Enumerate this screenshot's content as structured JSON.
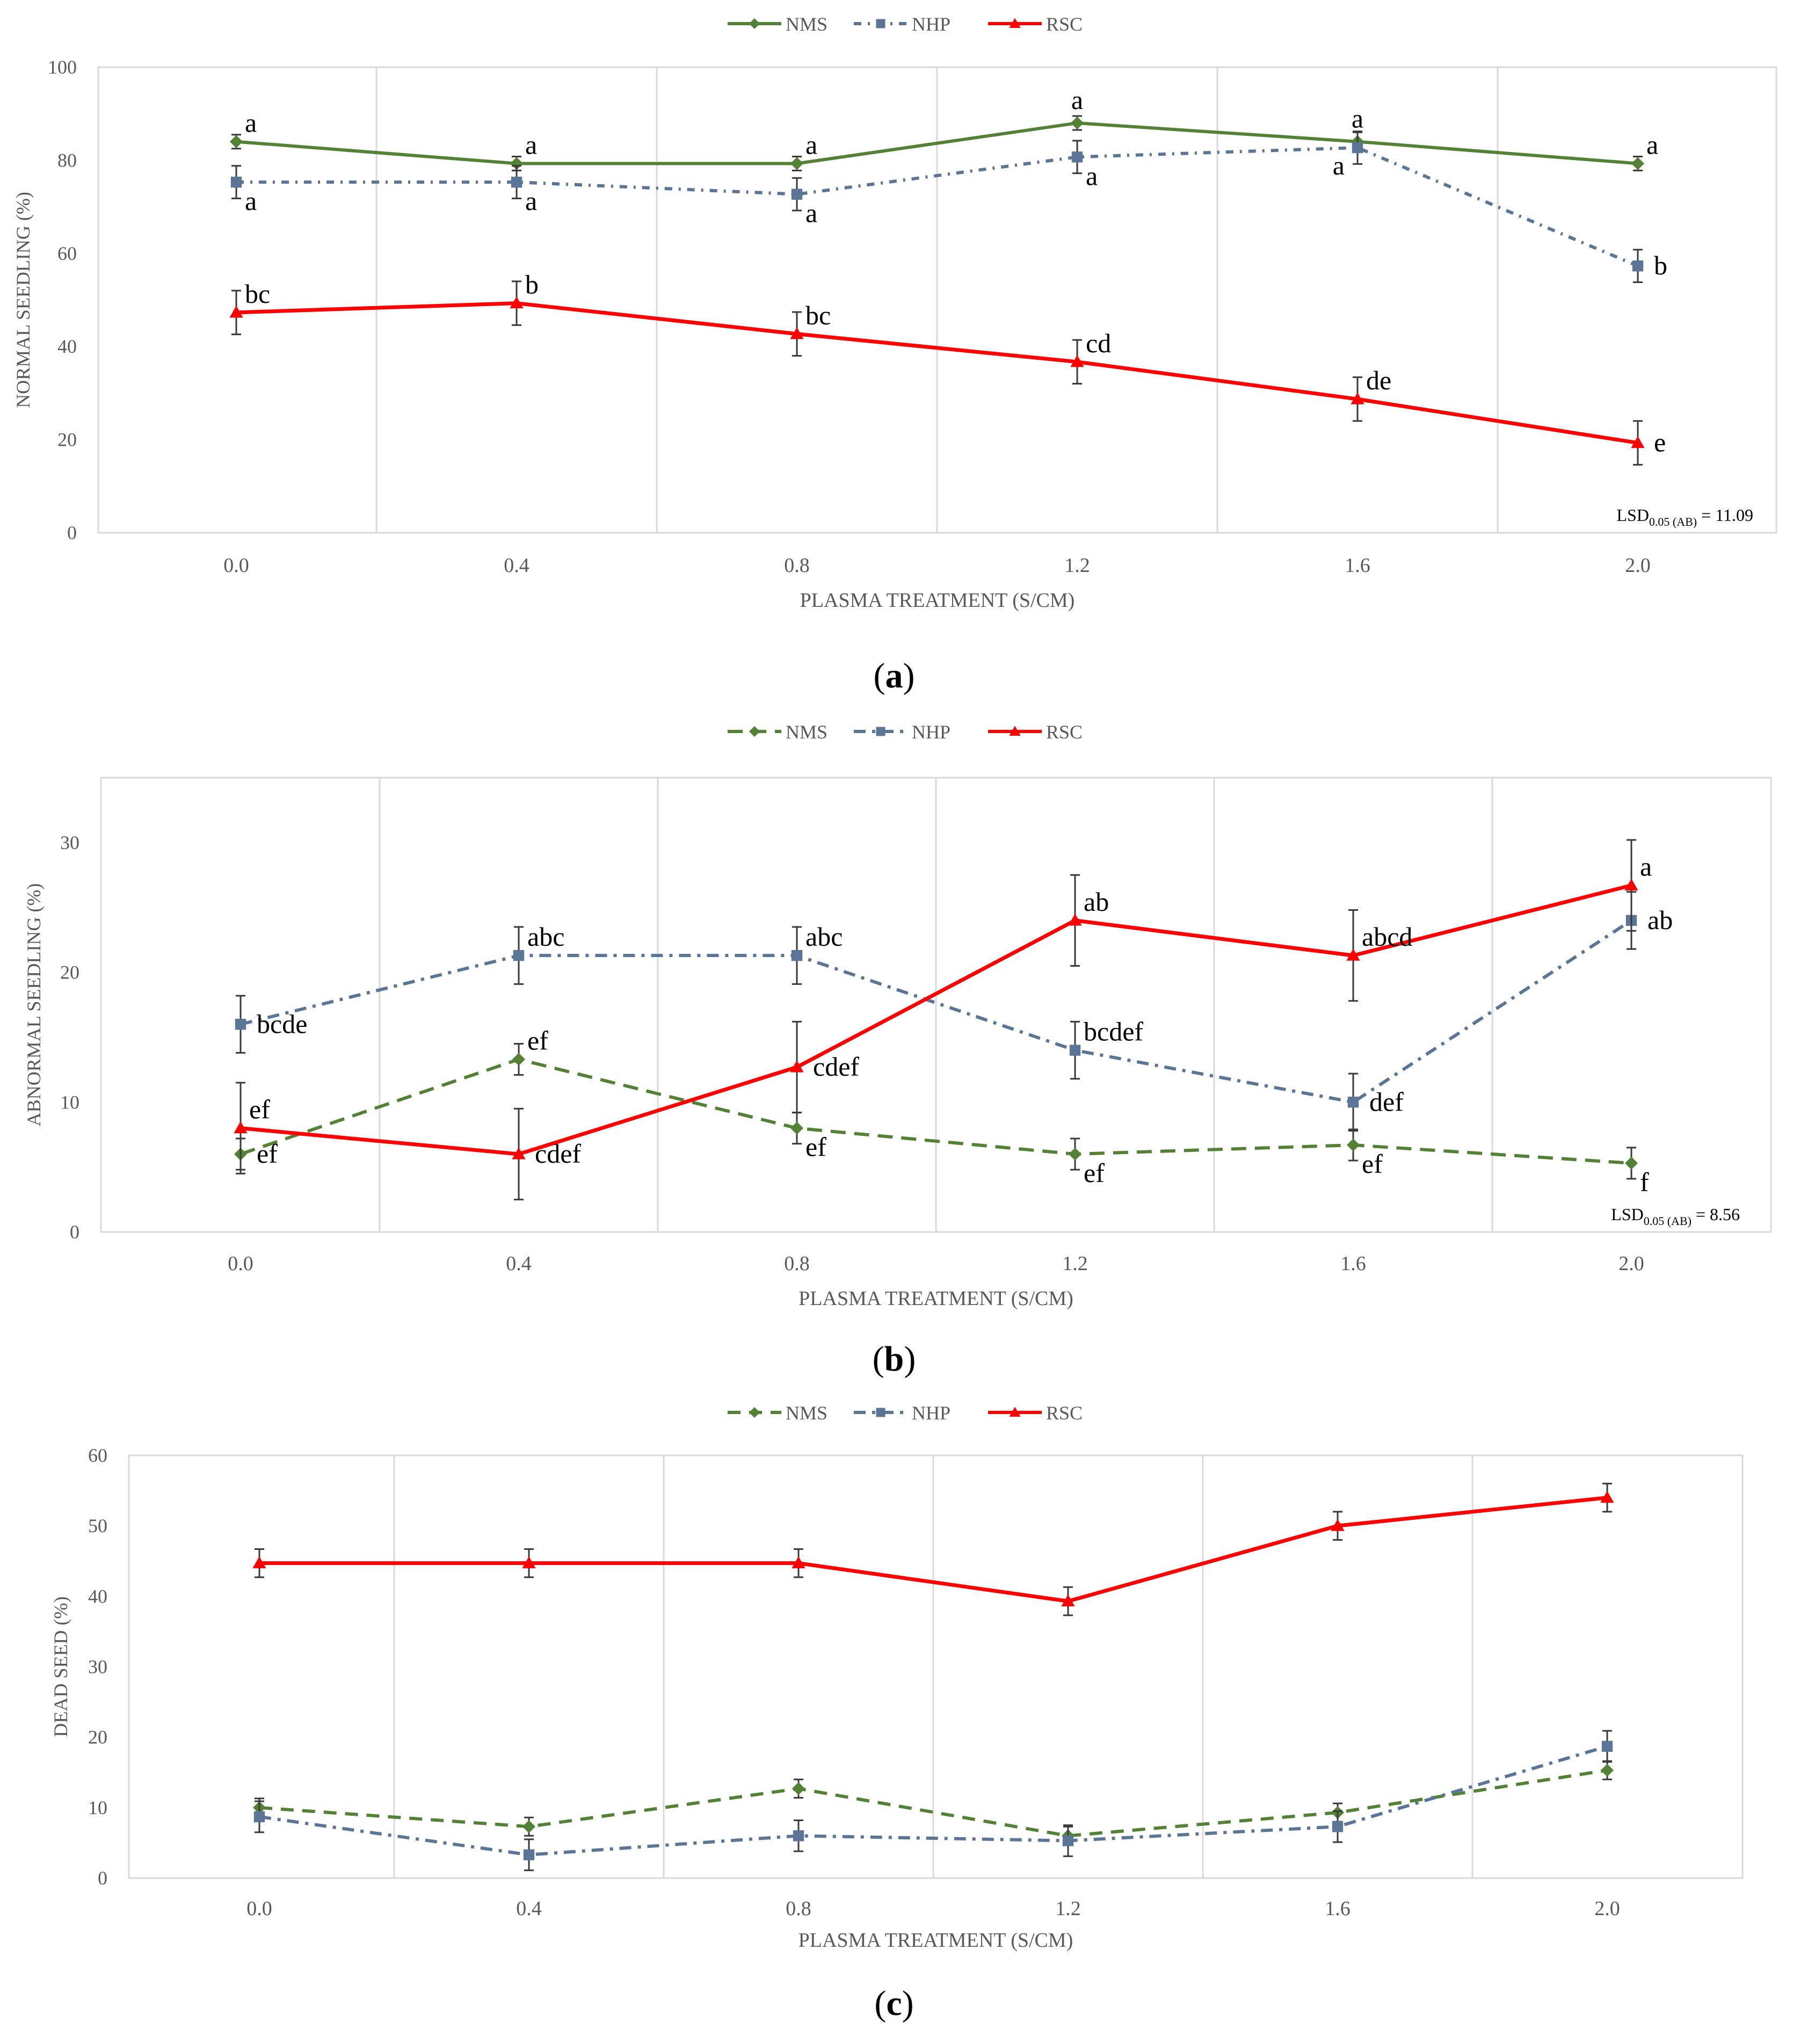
{
  "legend_labels": [
    "NMS",
    "NHP",
    "RSC"
  ],
  "series_colors": {
    "NMS": "#538135",
    "NHP": "#5b7596",
    "RSC": "#ff0000"
  },
  "chart_data": [
    {
      "id": "a",
      "type": "line",
      "caption": "a",
      "ylabel": "NORMAL SEEDLING (%)",
      "xlabel": "PLASMA TREATMENT (S/CM)",
      "categories": [
        "0.0",
        "0.4",
        "0.8",
        "1.2",
        "1.6",
        "2.0"
      ],
      "ylim": [
        0,
        100
      ],
      "yticks": [
        0,
        20,
        40,
        60,
        80,
        100
      ],
      "lsd_main": "LSD",
      "lsd_sub": "0.05 (AB)",
      "lsd_value": " = 11.09",
      "series": [
        {
          "name": "NMS",
          "values": [
            84,
            79.3,
            79.3,
            88,
            84,
            79.3
          ],
          "errors": [
            1.5,
            1.5,
            1.5,
            1.5,
            2,
            1.5
          ],
          "labels": [
            "a",
            "a",
            "a",
            "a",
            "a",
            "a"
          ],
          "label_pos": [
            "ne",
            "ne",
            "ne",
            "n",
            "n",
            "ne"
          ]
        },
        {
          "name": "NHP",
          "values": [
            75.3,
            75.3,
            72.7,
            80.7,
            82.7,
            57.3
          ],
          "errors": [
            3.5,
            3.5,
            3.5,
            3.5,
            3.5,
            3.5
          ],
          "labels": [
            "a",
            "a",
            "a",
            "a",
            "a",
            "b"
          ],
          "label_pos": [
            "se",
            "se",
            "se",
            "se",
            "sw",
            "e"
          ]
        },
        {
          "name": "RSC",
          "values": [
            47.3,
            49.3,
            42.7,
            36.7,
            28.7,
            19.3
          ],
          "errors": [
            4.7,
            4.7,
            4.7,
            4.7,
            4.7,
            4.7
          ],
          "labels": [
            "bc",
            "b",
            "bc",
            "cd",
            "de",
            "e"
          ],
          "label_pos": [
            "ne",
            "ne",
            "ne",
            "ne",
            "ne",
            "e"
          ]
        }
      ]
    },
    {
      "id": "b",
      "type": "line",
      "caption": "b",
      "ylabel": "ABNORMAL SEEDLING (%)",
      "xlabel": "PLASMA TREATMENT (S/CM)",
      "categories": [
        "0.0",
        "0.4",
        "0.8",
        "1.2",
        "1.6",
        "2.0"
      ],
      "ylim": [
        0,
        35
      ],
      "yticks": [
        0,
        10,
        20,
        30
      ],
      "lsd_main": "LSD",
      "lsd_sub": "0.05 (AB)",
      "lsd_value": " = 8.56",
      "series": [
        {
          "name": "NMS",
          "values": [
            6,
            13.3,
            8,
            6,
            6.7,
            5.3
          ],
          "errors": [
            1.2,
            1.2,
            1.2,
            1.2,
            1.2,
            1.2
          ],
          "labels": [
            "ef",
            "ef",
            "ef",
            "ef",
            "ef",
            "f"
          ],
          "label_pos": [
            "e",
            "ne",
            "se",
            "se",
            "se",
            "se"
          ]
        },
        {
          "name": "NHP",
          "values": [
            16,
            21.3,
            21.3,
            14,
            10,
            24
          ],
          "errors": [
            2.2,
            2.2,
            2.2,
            2.2,
            2.2,
            2.2
          ],
          "labels": [
            "bcde",
            "abc",
            "abc",
            "bcdef",
            "def",
            "ab"
          ],
          "label_pos": [
            "e",
            "ne",
            "ne",
            "ne",
            "e",
            "e"
          ]
        },
        {
          "name": "RSC",
          "values": [
            8,
            6,
            12.7,
            24,
            21.3,
            26.7
          ],
          "errors": [
            3.5,
            3.5,
            3.5,
            3.5,
            3.5,
            3.5
          ],
          "labels": [
            "ef",
            "cdef",
            "cdef",
            "ab",
            "abcd",
            "a"
          ],
          "label_pos": [
            "ne",
            "e",
            "e",
            "ne",
            "ne",
            "ne"
          ]
        }
      ]
    },
    {
      "id": "c",
      "type": "line",
      "caption": "c",
      "ylabel": "DEAD SEED (%)",
      "xlabel": "PLASMA TREATMENT (S/CM)",
      "categories": [
        "0.0",
        "0.4",
        "0.8",
        "1.2",
        "1.6",
        "2.0"
      ],
      "ylim": [
        0,
        60
      ],
      "yticks": [
        0,
        10,
        20,
        30,
        40,
        50,
        60
      ],
      "lsd_main": "",
      "lsd_sub": "",
      "lsd_value": "",
      "series": [
        {
          "name": "NMS",
          "values": [
            10,
            7.3,
            12.7,
            6,
            9.3,
            15.3
          ],
          "errors": [
            1.3,
            1.3,
            1.3,
            1.3,
            1.3,
            1.3
          ],
          "labels": [
            "",
            "",
            "",
            "",
            "",
            ""
          ],
          "label_pos": [
            "ne",
            "ne",
            "ne",
            "ne",
            "ne",
            "ne"
          ]
        },
        {
          "name": "NHP",
          "values": [
            8.7,
            3.3,
            6,
            5.3,
            7.3,
            18.7
          ],
          "errors": [
            2.2,
            2.2,
            2.2,
            2.2,
            2.2,
            2.2
          ],
          "labels": [
            "",
            "",
            "",
            "",
            "",
            ""
          ],
          "label_pos": [
            "ne",
            "ne",
            "ne",
            "ne",
            "ne",
            "ne"
          ]
        },
        {
          "name": "RSC",
          "values": [
            44.7,
            44.7,
            44.7,
            39.3,
            50,
            54
          ],
          "errors": [
            2,
            2,
            2,
            2,
            2,
            2
          ],
          "labels": [
            "",
            "",
            "",
            "",
            "",
            ""
          ],
          "label_pos": [
            "ne",
            "ne",
            "ne",
            "ne",
            "ne",
            "ne"
          ]
        }
      ]
    }
  ]
}
